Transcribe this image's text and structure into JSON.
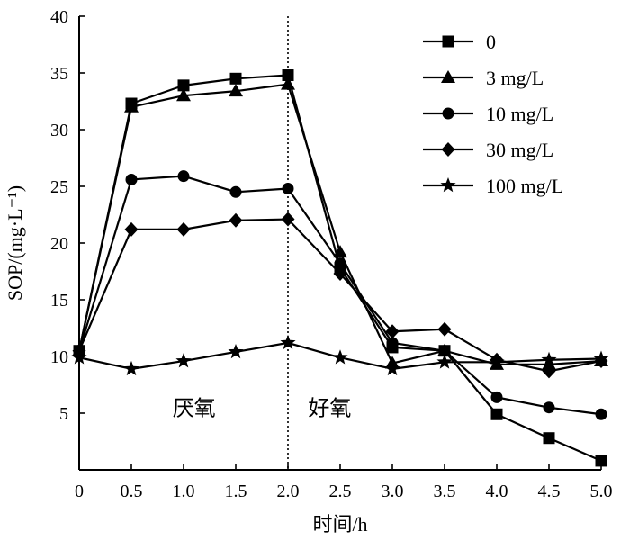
{
  "chart_data": {
    "type": "line",
    "title": "",
    "xlabel": "时间/h",
    "ylabel": "SOP/(mg·L⁻¹)",
    "xlim": [
      0,
      5.0
    ],
    "ylim": [
      0,
      40
    ],
    "x": [
      0,
      0.5,
      1.0,
      1.5,
      2.0,
      2.5,
      3.0,
      3.5,
      4.0,
      4.5,
      5.0
    ],
    "x_tick_labels": [
      "0",
      "0.5",
      "1.0",
      "1.5",
      "2.0",
      "2.5",
      "3.0",
      "3.5",
      "4.0",
      "4.5",
      "5.0"
    ],
    "y_ticks": [
      5,
      10,
      15,
      20,
      25,
      30,
      35,
      40
    ],
    "y_tick_labels": [
      "5",
      "10",
      "15",
      "20",
      "25",
      "30",
      "35",
      "40"
    ],
    "grid": false,
    "legend_position": "top-right",
    "divider_x": 2.0,
    "annotations": [
      {
        "text": "厌氧",
        "x": 1.1,
        "y": 4.8
      },
      {
        "text": "好氧",
        "x": 2.4,
        "y": 4.8
      }
    ],
    "series": [
      {
        "name": "0",
        "marker": "square",
        "values": [
          10.5,
          32.3,
          33.9,
          34.5,
          34.8,
          17.8,
          10.8,
          10.5,
          4.9,
          2.8,
          0.8
        ]
      },
      {
        "name": "3 mg/L",
        "marker": "triangle",
        "values": [
          10.5,
          32.0,
          33.0,
          33.4,
          34.0,
          19.2,
          9.4,
          10.5,
          9.3,
          9.3,
          9.6
        ]
      },
      {
        "name": "10 mg/L",
        "marker": "circle",
        "values": [
          10.5,
          25.6,
          25.9,
          24.5,
          24.8,
          18.2,
          11.2,
          10.5,
          6.4,
          5.5,
          4.9
        ]
      },
      {
        "name": "30 mg/L",
        "marker": "diamond",
        "values": [
          10.5,
          21.2,
          21.2,
          22.0,
          22.1,
          17.3,
          12.2,
          12.4,
          9.7,
          8.7,
          9.6
        ]
      },
      {
        "name": "100 mg/L",
        "marker": "star",
        "values": [
          9.9,
          8.9,
          9.6,
          10.4,
          11.2,
          9.9,
          8.9,
          9.5,
          9.5,
          9.7,
          9.8
        ]
      }
    ]
  }
}
